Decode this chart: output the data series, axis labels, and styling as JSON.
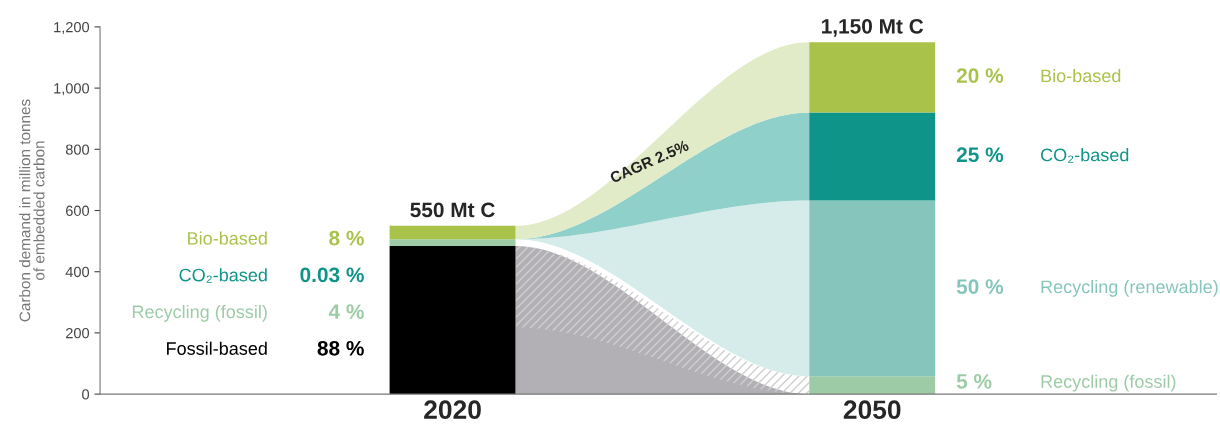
{
  "chart_data": {
    "type": "bar",
    "stacked": true,
    "categories": [
      "2020",
      "2050"
    ],
    "ylabel": "Carbon demand in million tonnes\nof embedded carbon",
    "ylim": [
      0,
      1200
    ],
    "yticks": [
      0,
      200,
      400,
      600,
      800,
      {
        "value": 1000,
        "label": "1,000"
      },
      {
        "value": 1200,
        "label": "1,200"
      }
    ],
    "series": [
      {
        "name": "Fossil-based",
        "color": "#000000",
        "values": [
          484,
          0
        ]
      },
      {
        "name": "Recycling (fossil)",
        "color": "#9ccba6",
        "values": [
          22,
          58
        ]
      },
      {
        "name": "Recycling (renewable)",
        "color": "#86c5bb",
        "values": [
          0,
          575
        ]
      },
      {
        "name": "CO₂-based",
        "color": "#0e9488",
        "values": [
          0,
          287
        ]
      },
      {
        "name": "Bio-based",
        "color": "#a8c24a",
        "values": [
          44,
          230
        ]
      }
    ],
    "totals": [
      "550 Mt C",
      "1,150 Mt C"
    ],
    "annotations": [
      "CAGR 2.5%",
      "8 %",
      "0.03 %",
      "4 %",
      "88 %",
      "20 %",
      "25 %",
      "50 %",
      "5 %"
    ],
    "grid": false,
    "legend": false
  }
}
